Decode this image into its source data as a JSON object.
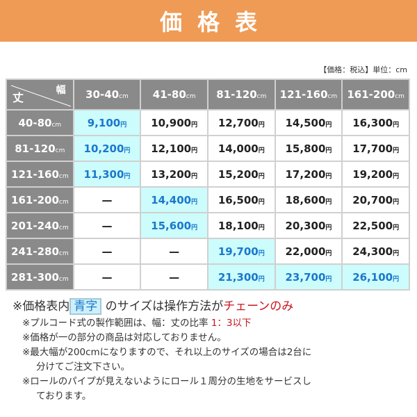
{
  "title": "価格表",
  "unit_note": "【価格：税込】単位：cm",
  "corner": {
    "height_label": "丈",
    "width_label": "幅"
  },
  "unit": "cm",
  "yen": "円",
  "columns": [
    "30-40",
    "41-80",
    "81-120",
    "121-160",
    "161-200"
  ],
  "rows": [
    {
      "label": "40-80",
      "cells": [
        {
          "v": "9,100",
          "blue": true
        },
        {
          "v": "10,900"
        },
        {
          "v": "12,700"
        },
        {
          "v": "14,500"
        },
        {
          "v": "16,300"
        }
      ]
    },
    {
      "label": "81-120",
      "cells": [
        {
          "v": "10,200",
          "blue": true
        },
        {
          "v": "12,100"
        },
        {
          "v": "14,000"
        },
        {
          "v": "15,800"
        },
        {
          "v": "17,700"
        }
      ]
    },
    {
      "label": "121-160",
      "cells": [
        {
          "v": "11,300",
          "blue": true
        },
        {
          "v": "13,200"
        },
        {
          "v": "15,200"
        },
        {
          "v": "17,200"
        },
        {
          "v": "19,200"
        }
      ]
    },
    {
      "label": "161-200",
      "cells": [
        {
          "v": "—",
          "dash": true
        },
        {
          "v": "14,400",
          "blue": true
        },
        {
          "v": "16,500"
        },
        {
          "v": "18,600"
        },
        {
          "v": "20,700"
        }
      ]
    },
    {
      "label": "201-240",
      "cells": [
        {
          "v": "—",
          "dash": true
        },
        {
          "v": "15,600",
          "blue": true
        },
        {
          "v": "18,100"
        },
        {
          "v": "20,300"
        },
        {
          "v": "22,500"
        }
      ]
    },
    {
      "label": "241-280",
      "cells": [
        {
          "v": "—",
          "dash": true
        },
        {
          "v": "—",
          "dash": true
        },
        {
          "v": "19,700",
          "blue": true
        },
        {
          "v": "22,000"
        },
        {
          "v": "24,300"
        }
      ]
    },
    {
      "label": "281-300",
      "cells": [
        {
          "v": "—",
          "dash": true
        },
        {
          "v": "—",
          "dash": true
        },
        {
          "v": "21,300",
          "blue": true
        },
        {
          "v": "23,700",
          "blue": true
        },
        {
          "v": "26,100",
          "blue": true
        }
      ]
    }
  ],
  "notes": {
    "main_a": "※価格表内",
    "main_hl": "青字",
    "main_b": "のサイズは操作方法が",
    "main_red": "チェーンのみ",
    "n1a": "※プルコード式の製作範囲は、幅：丈の比率 ",
    "n1red": "1：3以下",
    "n2": "※価格が一の部分の商品は対応しておりません。",
    "n3a": "※最大幅が200cmになりますので、それ以上のサイズの場合は2台に",
    "n3b": "分けてご注文下さい。",
    "n4a": "※ロールのパイプが見えないようにロール１周分の生地をサービスし",
    "n4b": "ております。"
  },
  "colors": {
    "banner": "#ef9b55",
    "header": "#8a8a8a",
    "blue_bg": "#ccfcfc",
    "blue_text": "#1a78cc",
    "red": "#c8141e"
  }
}
